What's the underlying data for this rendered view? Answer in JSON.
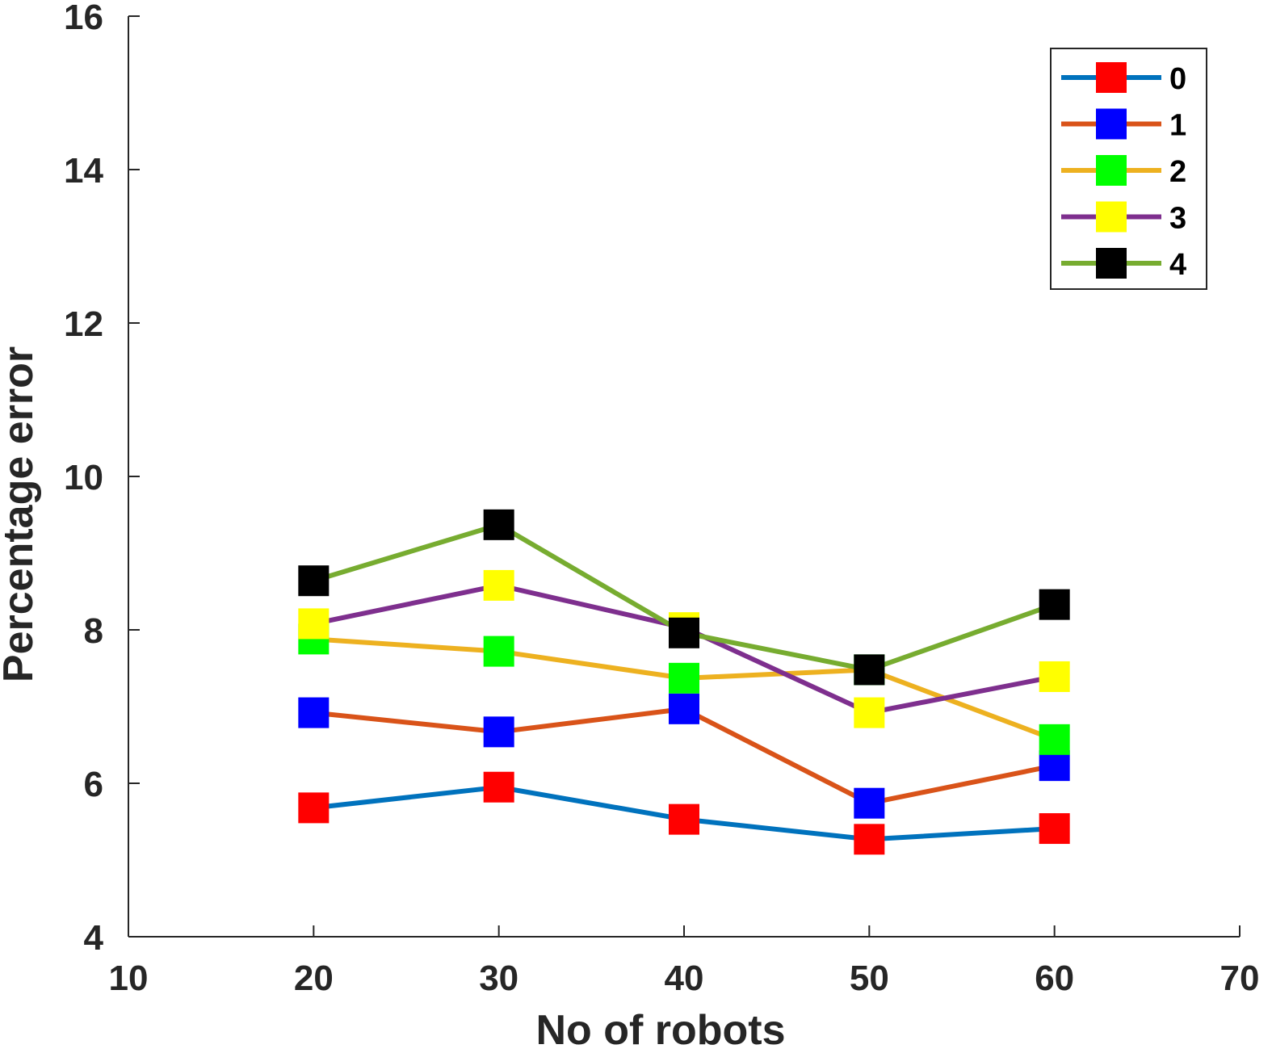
{
  "chart_data": {
    "type": "line",
    "xlabel": "No of robots",
    "ylabel": "Percentage error",
    "xlim": [
      10,
      70
    ],
    "ylim": [
      4,
      16
    ],
    "xticks": [
      "10",
      "20",
      "30",
      "40",
      "50",
      "60",
      "70"
    ],
    "yticks": [
      "4",
      "6",
      "8",
      "10",
      "12",
      "14",
      "16"
    ],
    "x": [
      20,
      30,
      40,
      50,
      60
    ],
    "grid": false,
    "legend_position": "top-right",
    "series": [
      {
        "name": "0",
        "values": [
          5.68,
          5.95,
          5.53,
          5.27,
          5.41
        ],
        "line_color": "#0072BD",
        "marker_color": "#FF0000"
      },
      {
        "name": "1",
        "values": [
          6.92,
          6.67,
          6.97,
          5.74,
          6.23
        ],
        "line_color": "#D95319",
        "marker_color": "#0000FF"
      },
      {
        "name": "2",
        "values": [
          7.88,
          7.72,
          7.37,
          7.48,
          6.57
        ],
        "line_color": "#EDB120",
        "marker_color": "#00FF00"
      },
      {
        "name": "3",
        "values": [
          8.08,
          8.58,
          8.03,
          6.92,
          7.39
        ],
        "line_color": "#7E2F8E",
        "marker_color": "#FFFF00"
      },
      {
        "name": "4",
        "values": [
          8.64,
          9.37,
          7.96,
          7.48,
          8.33
        ],
        "line_color": "#77AC30",
        "marker_color": "#000000"
      }
    ]
  }
}
